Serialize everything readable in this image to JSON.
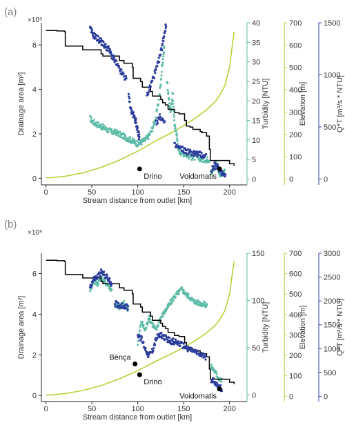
{
  "figure": {
    "colors": {
      "drainage": "#000000",
      "turbidity": "#5bbba6",
      "elevation": "#b6d235",
      "qt": "#2c3c9c"
    }
  },
  "chart_data": [
    {
      "type": "scatter",
      "panel": "(a)",
      "multiplier": "×10⁹",
      "x": {
        "label": "Stream distance from outlet [km]",
        "range": [
          -5,
          210
        ],
        "ticks": [
          0,
          50,
          100,
          150,
          200
        ]
      },
      "axes": {
        "drainage": {
          "label": "Drainage area [m²]",
          "range": [
            -0.3,
            7.0
          ],
          "ticks": [
            0,
            2,
            4,
            6
          ]
        },
        "turbidity": {
          "label": "Turbidity [NTU]",
          "range": [
            -1.5,
            40
          ],
          "ticks": [
            0,
            5,
            10,
            15,
            20,
            25,
            30,
            35,
            40
          ]
        },
        "elevation": {
          "label": "Elevation [m]",
          "range": [
            -26,
            700
          ],
          "ticks": [
            0,
            100,
            200,
            300,
            400,
            500,
            600,
            700
          ]
        },
        "qt": {
          "label": "Q*T [m³/s * NTU]",
          "range": [
            -56,
            1500
          ],
          "ticks": [
            0,
            500,
            1000,
            1500
          ]
        }
      },
      "drainage_area": {
        "x": [
          0,
          12,
          20,
          21,
          40,
          60,
          62,
          80,
          85,
          94,
          95,
          103,
          105,
          114,
          116,
          125,
          127,
          130,
          133,
          140,
          145,
          151,
          153,
          157,
          160,
          168,
          170,
          175,
          178,
          179,
          200,
          205
        ],
        "y": [
          6.65,
          6.63,
          6.6,
          5.95,
          5.78,
          5.6,
          5.5,
          5.3,
          5.18,
          5.0,
          4.5,
          4.35,
          4.1,
          3.9,
          3.7,
          3.55,
          3.4,
          3.3,
          3.1,
          2.95,
          2.9,
          2.6,
          2.35,
          2.3,
          2.2,
          2.1,
          2.05,
          1.9,
          1.3,
          0.8,
          0.65,
          0.55
        ]
      },
      "elevation": {
        "x": [
          0,
          20,
          40,
          60,
          80,
          100,
          120,
          140,
          160,
          175,
          185,
          190,
          195,
          200,
          203,
          205
        ],
        "y": [
          5,
          12,
          28,
          52,
          85,
          125,
          172,
          215,
          265,
          310,
          350,
          380,
          420,
          500,
          600,
          660
        ]
      },
      "turbidity": [
        {
          "x": [
            48,
            52,
            56,
            60,
            64,
            68,
            72,
            76,
            80,
            84,
            88,
            92,
            96,
            100
          ],
          "y": [
            15.5,
            14.5,
            14,
            13.5,
            13,
            12.5,
            12,
            12,
            11.5,
            11,
            10.5,
            10,
            9.5,
            9
          ]
        },
        {
          "x": [
            100,
            104,
            108,
            112,
            116,
            120,
            124,
            127,
            129
          ],
          "y": [
            9,
            9.5,
            10,
            11,
            13,
            16,
            22,
            30,
            34
          ]
        },
        {
          "x": [
            132,
            134,
            136,
            138,
            140,
            142,
            144,
            146,
            150,
            155,
            160,
            165,
            170,
            175,
            178
          ],
          "y": [
            25,
            20,
            17,
            22,
            14,
            12,
            8,
            7,
            6.5,
            6,
            5.5,
            5.5,
            5,
            5,
            5
          ]
        },
        {
          "x": [
            180,
            183,
            186,
            189,
            192,
            195
          ],
          "y": [
            2,
            2.5,
            4,
            1.5,
            1,
            2
          ]
        }
      ],
      "qt": [
        {
          "x": [
            48,
            52,
            56,
            60,
            64,
            68,
            72,
            76,
            80,
            84,
            88
          ],
          "y": [
            1440,
            1380,
            1350,
            1320,
            1280,
            1250,
            1180,
            1120,
            1050,
            1000,
            950
          ]
        },
        {
          "x": [
            90,
            93,
            96,
            98,
            100,
            102
          ],
          "y": [
            800,
            650,
            600,
            550,
            450,
            400
          ]
        },
        {
          "x": [
            110,
            114,
            118,
            122,
            126,
            129,
            131
          ],
          "y": [
            800,
            900,
            1000,
            1100,
            1250,
            1400,
            1480
          ]
        },
        {
          "x": [
            120,
            125,
            130
          ],
          "y": [
            550,
            600,
            520
          ]
        },
        {
          "x": [
            140,
            145,
            150,
            155,
            160,
            165,
            170,
            175
          ],
          "y": [
            320,
            300,
            280,
            260,
            250,
            240,
            230,
            220
          ]
        },
        {
          "x": [
            180,
            184,
            188,
            192,
            196
          ],
          "y": [
            90,
            130,
            110,
            60,
            50
          ]
        }
      ],
      "annotations": [
        {
          "label": "Drino",
          "x": 102,
          "y": 0.42
        },
        {
          "label": "Voidomatis",
          "x": 189,
          "y": 0.42
        }
      ]
    },
    {
      "type": "scatter",
      "panel": "(b)",
      "multiplier": "×10⁹",
      "x": {
        "label": "Stream distance from outlet [km]",
        "range": [
          -5,
          210
        ],
        "ticks": [
          0,
          50,
          100,
          150,
          200
        ]
      },
      "axes": {
        "drainage": {
          "label": "Drainage area [m²]",
          "range": [
            -0.3,
            7.0
          ],
          "ticks": [
            0,
            2,
            4,
            6
          ]
        },
        "turbidity": {
          "label": "Turbidity [NTU]",
          "range": [
            -7,
            150
          ],
          "ticks": [
            0,
            50,
            100,
            150
          ]
        },
        "elevation": {
          "label": "Elevation [m]",
          "range": [
            -26,
            700
          ],
          "ticks": [
            0,
            100,
            200,
            300,
            400,
            500,
            600,
            700
          ]
        },
        "qt": {
          "label": "Q*T [m³/s * NTU]",
          "range": [
            -110,
            3000
          ],
          "ticks": [
            0,
            500,
            1000,
            1500,
            2000,
            2500,
            3000
          ]
        }
      },
      "drainage_area": {
        "x": [
          0,
          12,
          20,
          21,
          40,
          60,
          62,
          80,
          85,
          94,
          95,
          103,
          105,
          114,
          116,
          125,
          127,
          130,
          133,
          140,
          145,
          151,
          153,
          157,
          160,
          168,
          170,
          175,
          178,
          179,
          200,
          205
        ],
        "y": [
          6.65,
          6.63,
          6.6,
          5.95,
          5.78,
          5.6,
          5.5,
          5.3,
          5.18,
          5.0,
          4.5,
          4.35,
          4.1,
          3.9,
          3.7,
          3.55,
          3.4,
          3.3,
          3.1,
          2.95,
          2.9,
          2.6,
          2.35,
          2.3,
          2.2,
          2.1,
          2.05,
          1.9,
          1.3,
          0.8,
          0.65,
          0.55
        ]
      },
      "elevation": {
        "x": [
          0,
          20,
          40,
          60,
          80,
          100,
          120,
          140,
          160,
          175,
          185,
          190,
          195,
          200,
          203,
          205
        ],
        "y": [
          5,
          12,
          28,
          52,
          85,
          125,
          172,
          215,
          265,
          310,
          350,
          380,
          420,
          500,
          600,
          660
        ]
      },
      "turbidity": [
        {
          "x": [
            48,
            52,
            56,
            60,
            64,
            68,
            72
          ],
          "y": [
            112,
            120,
            118,
            124,
            120,
            116,
            110
          ]
        },
        {
          "x": [
            75,
            80,
            85,
            90
          ],
          "y": [
            95,
            93,
            97,
            90
          ]
        },
        {
          "x": [
            100,
            104,
            108,
            112,
            116,
            120,
            124,
            128,
            132,
            136,
            140,
            144,
            148,
            152,
            156,
            160,
            164,
            168,
            172,
            176
          ],
          "y": [
            55,
            78,
            68,
            82,
            75,
            68,
            80,
            86,
            92,
            98,
            104,
            108,
            112,
            107,
            104,
            100,
            98,
            97,
            96,
            95
          ]
        },
        {
          "x": [
            180,
            184,
            188,
            192
          ],
          "y": [
            30,
            25,
            18,
            15
          ]
        }
      ],
      "qt": [
        {
          "x": [
            48,
            52,
            56,
            60,
            64,
            68,
            72
          ],
          "y": [
            2300,
            2450,
            2500,
            2600,
            2550,
            2450,
            2350
          ]
        },
        {
          "x": [
            75,
            80,
            85,
            90
          ],
          "y": [
            1950,
            1900,
            1900,
            1850
          ]
        },
        {
          "x": [
            100,
            104,
            108,
            112,
            116,
            120,
            124,
            128,
            132,
            136,
            140,
            145,
            150,
            155,
            160,
            165,
            170,
            175
          ],
          "y": [
            1300,
            1200,
            1000,
            850,
            950,
            1200,
            1300,
            1250,
            1200,
            1150,
            1150,
            1100,
            1050,
            1000,
            950,
            900,
            850,
            820
          ]
        },
        {
          "x": [
            180,
            184,
            188,
            192
          ],
          "y": [
            350,
            300,
            200,
            150
          ]
        }
      ],
      "annotations": [
        {
          "label": "Bënça",
          "x": 97,
          "y": 1.55
        },
        {
          "label": "Drino",
          "x": 102,
          "y": 1.02
        },
        {
          "label": "Voidomatis",
          "x": 189,
          "y": 0.32
        }
      ]
    }
  ]
}
